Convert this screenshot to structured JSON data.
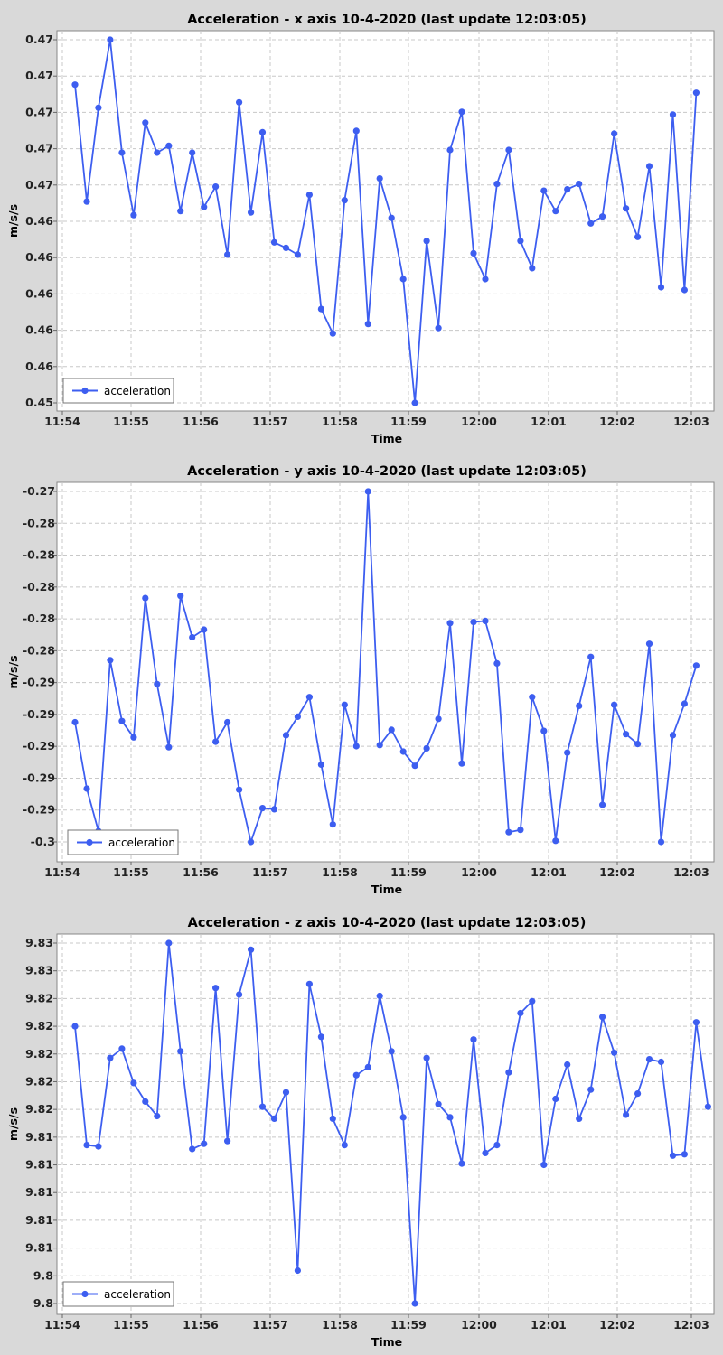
{
  "colors": {
    "series": "#3d5ef0",
    "plot_bg": "#ffffff",
    "page_bg": "#d9d9d9",
    "grid": "#c8c8c8"
  },
  "chart_data": [
    {
      "type": "line",
      "title": "Acceleration - x axis 10-4-2020 (last update 12:03:05)",
      "xlabel": "Time",
      "ylabel": "m/s/s",
      "x_ticks": [
        "11:54",
        "11:55",
        "11:56",
        "11:57",
        "11:58",
        "11:59",
        "12:00",
        "12:01",
        "12:02",
        "12:03"
      ],
      "y_ticks": [
        "0.45",
        "0.46",
        "0.46",
        "0.46",
        "0.46",
        "0.46",
        "0.47",
        "0.47",
        "0.47",
        "0.47",
        "0.47"
      ],
      "legend": {
        "position": "bottom-left"
      },
      "series": [
        {
          "name": "acceleration",
          "values": [
            0.469,
            0.4604,
            0.4673,
            0.4723,
            0.464,
            0.4594,
            0.4662,
            0.464,
            0.4645,
            0.4597,
            0.464,
            0.46,
            0.4615,
            0.4565,
            0.4677,
            0.4596,
            0.4655,
            0.4574,
            0.457,
            0.4565,
            0.4609,
            0.4525,
            0.4507,
            0.4605,
            0.4656,
            0.4514,
            0.4621,
            0.4592,
            0.4547,
            0.4456,
            0.4575,
            0.4511,
            0.4642,
            0.467,
            0.4566,
            0.4547,
            0.4617,
            0.4642,
            0.4575,
            0.4555,
            0.4612,
            0.4597,
            0.4613,
            0.4617,
            0.4588,
            0.4593,
            0.4654,
            0.4599,
            0.4578,
            0.463,
            0.4541,
            0.4668,
            0.4539,
            0.4684
          ]
        }
      ]
    },
    {
      "type": "line",
      "title": "Acceleration - y axis 10-4-2020 (last update 12:03:05)",
      "xlabel": "Time",
      "ylabel": "m/s/s",
      "x_ticks": [
        "11:54",
        "11:55",
        "11:56",
        "11:57",
        "11:58",
        "11:59",
        "12:00",
        "12:01",
        "12:02",
        "12:03"
      ],
      "y_ticks": [
        "-0.3",
        "-0.29",
        "-0.29",
        "-0.29",
        "-0.29",
        "-0.29",
        "-0.28",
        "-0.28",
        "-0.28",
        "-0.28",
        "-0.28",
        "-0.27"
      ],
      "legend": {
        "position": "bottom-left"
      },
      "series": [
        {
          "name": "acceleration",
          "values": [
            -0.2894,
            -0.2955,
            -0.2994,
            -0.2837,
            -0.2893,
            -0.2908,
            -0.278,
            -0.2859,
            -0.2917,
            -0.2778,
            -0.2816,
            -0.2809,
            -0.2912,
            -0.2894,
            -0.2956,
            -0.3004,
            -0.2973,
            -0.2974,
            -0.2906,
            -0.2889,
            -0.2871,
            -0.2933,
            -0.2988,
            -0.2878,
            -0.2916,
            -0.2682,
            -0.2915,
            -0.2901,
            -0.2921,
            -0.2934,
            -0.2918,
            -0.2891,
            -0.2803,
            -0.2932,
            -0.2802,
            -0.2801,
            -0.284,
            -0.2995,
            -0.2993,
            -0.2871,
            -0.2902,
            -0.3003,
            -0.2922,
            -0.2879,
            -0.2834,
            -0.297,
            -0.2878,
            -0.2905,
            -0.2914,
            -0.2822,
            -0.3004,
            -0.2906,
            -0.2877,
            -0.2842
          ]
        }
      ]
    },
    {
      "type": "line",
      "title": "Acceleration - z axis 10-4-2020 (last update 12:03:05)",
      "xlabel": "Time",
      "ylabel": "m/s/s",
      "x_ticks": [
        "11:54",
        "11:55",
        "11:56",
        "11:57",
        "11:58",
        "11:59",
        "12:00",
        "12:01",
        "12:02",
        "12:03"
      ],
      "y_ticks": [
        "9.8",
        "9.8",
        "9.81",
        "9.81",
        "9.81",
        "9.81",
        "9.81",
        "9.82",
        "9.82",
        "9.82",
        "9.82",
        "9.82",
        "9.83",
        "9.83"
      ],
      "legend": {
        "position": "bottom-left"
      },
      "series": [
        {
          "name": "acceleration",
          "values": [
            9.8225,
            9.8135,
            9.8134,
            9.8201,
            9.8208,
            9.8182,
            9.8168,
            9.8157,
            9.8288,
            9.8206,
            9.8132,
            9.8136,
            9.8254,
            9.8138,
            9.8249,
            9.8283,
            9.8164,
            9.8155,
            9.8175,
            9.804,
            9.8257,
            9.8217,
            9.8155,
            9.8135,
            9.8188,
            9.8194,
            9.8248,
            9.8206,
            9.8156,
            9.8015,
            9.8201,
            9.8166,
            9.8156,
            9.8121,
            9.8215,
            9.8129,
            9.8135,
            9.819,
            9.8235,
            9.8244,
            9.812,
            9.817,
            9.8196,
            9.8155,
            9.8177,
            9.8232,
            9.8205,
            9.8158,
            9.8174,
            9.82,
            9.8198,
            9.8127,
            9.8128,
            9.8228,
            9.8164
          ]
        }
      ]
    }
  ]
}
